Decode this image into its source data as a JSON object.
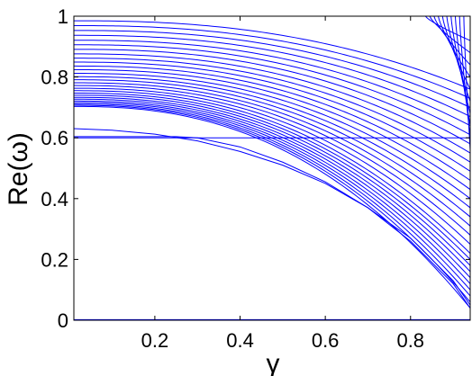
{
  "chart_data": {
    "type": "line",
    "title": "",
    "xlabel": "γ",
    "ylabel": "Re(ω)",
    "xlim": [
      0.01,
      0.94
    ],
    "ylim": [
      0,
      1
    ],
    "x_ticks": [
      0.2,
      0.4,
      0.6,
      0.8
    ],
    "x_tick_labels": [
      "0.2",
      "0.4",
      "0.6",
      "0.8"
    ],
    "y_ticks": [
      0,
      0.2,
      0.4,
      0.6,
      0.8,
      1
    ],
    "y_tick_labels": [
      "0",
      "0.2",
      "0.4",
      "0.6",
      "0.8",
      "1"
    ],
    "grid": false,
    "legend": false,
    "line_color": "#0000ff",
    "curve_family": {
      "description_free_params": true,
      "start_values_at_left": [
        0.703,
        0.707,
        0.711,
        0.716,
        0.721,
        0.727,
        0.733,
        0.74,
        0.747,
        0.755,
        0.763,
        0.772,
        0.781,
        0.791,
        0.801,
        0.812,
        0.824,
        0.836,
        0.849,
        0.862,
        0.876,
        0.891,
        0.906,
        0.921,
        0.937,
        0.953,
        0.969,
        0.985
      ],
      "end_values_at_right": [
        0.04,
        0.06,
        0.08,
        0.1,
        0.12,
        0.14,
        0.16,
        0.18,
        0.2,
        0.22,
        0.25,
        0.28,
        0.31,
        0.34,
        0.37,
        0.4,
        0.43,
        0.46,
        0.49,
        0.52,
        0.55,
        0.58,
        0.61,
        0.64,
        0.67,
        0.7,
        0.73,
        0.76
      ]
    },
    "extra_series": [
      {
        "x": [
          0.01,
          0.1,
          0.2,
          0.3,
          0.4,
          0.5,
          0.6,
          0.7,
          0.8,
          0.9,
          0.94
        ],
        "y": [
          0.63,
          0.625,
          0.612,
          0.59,
          0.555,
          0.51,
          0.45,
          0.37,
          0.27,
          0.13,
          0.05
        ]
      },
      {
        "x": [
          0.01,
          0.1,
          0.2,
          0.25,
          0.3,
          0.4,
          0.5,
          0.6,
          0.7,
          0.8,
          0.9,
          0.94
        ],
        "y": [
          0.604,
          0.604,
          0.604,
          0.604,
          0.6,
          0.57,
          0.52,
          0.455,
          0.37,
          0.26,
          0.12,
          0.04
        ]
      },
      {
        "x": [
          0.01,
          0.94
        ],
        "y": [
          0.6,
          0.6
        ]
      },
      {
        "x": [
          0.01,
          0.94
        ],
        "y": [
          0.002,
          0.002
        ]
      }
    ],
    "upper_right_crossing_curves": {
      "x_start_at_top": [
        0.835,
        0.845,
        0.855,
        0.865,
        0.875,
        0.885,
        0.895,
        0.905,
        0.915,
        0.925
      ],
      "y_end_at_right": [
        0.92,
        0.88,
        0.84,
        0.8,
        0.76,
        0.72,
        0.68,
        0.64,
        0.6,
        0.56
      ]
    }
  }
}
